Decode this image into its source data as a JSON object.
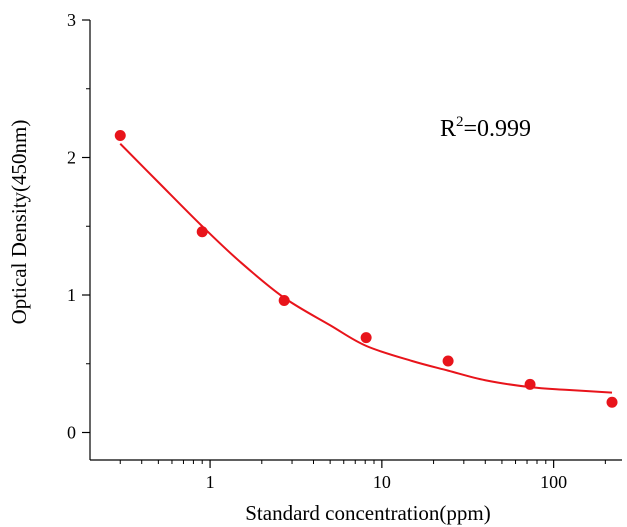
{
  "chart_data": {
    "type": "scatter",
    "title": "",
    "xlabel": "Standard concentration(ppm)",
    "ylabel": "Optical Density(450nm)",
    "x_scale": "log",
    "xlim": [
      0.2,
      250
    ],
    "ylim": [
      -0.2,
      3
    ],
    "x_ticks": [
      1,
      10,
      100
    ],
    "x_tick_labels": [
      "1",
      "10",
      "100"
    ],
    "y_ticks": [
      0,
      1,
      2,
      3
    ],
    "y_tick_labels": [
      "0",
      "1",
      "2",
      "3"
    ],
    "grid": false,
    "legend": "none",
    "points": {
      "x": [
        0.3,
        0.9,
        2.7,
        8.1,
        24.3,
        72.9,
        218.7
      ],
      "y": [
        2.16,
        1.46,
        0.96,
        0.69,
        0.52,
        0.35,
        0.22
      ],
      "color": "#e8141b"
    },
    "fit_curve": {
      "x": [
        0.3,
        0.5,
        0.9,
        1.5,
        2.7,
        5,
        8.1,
        15,
        24.3,
        40,
        72.9,
        120,
        218.7
      ],
      "y": [
        2.1,
        1.82,
        1.5,
        1.24,
        0.98,
        0.78,
        0.63,
        0.52,
        0.45,
        0.38,
        0.33,
        0.31,
        0.29
      ],
      "color": "#e8141b"
    },
    "annotation": {
      "base": "R",
      "superscript": "2",
      "rest": "=0.999"
    }
  }
}
